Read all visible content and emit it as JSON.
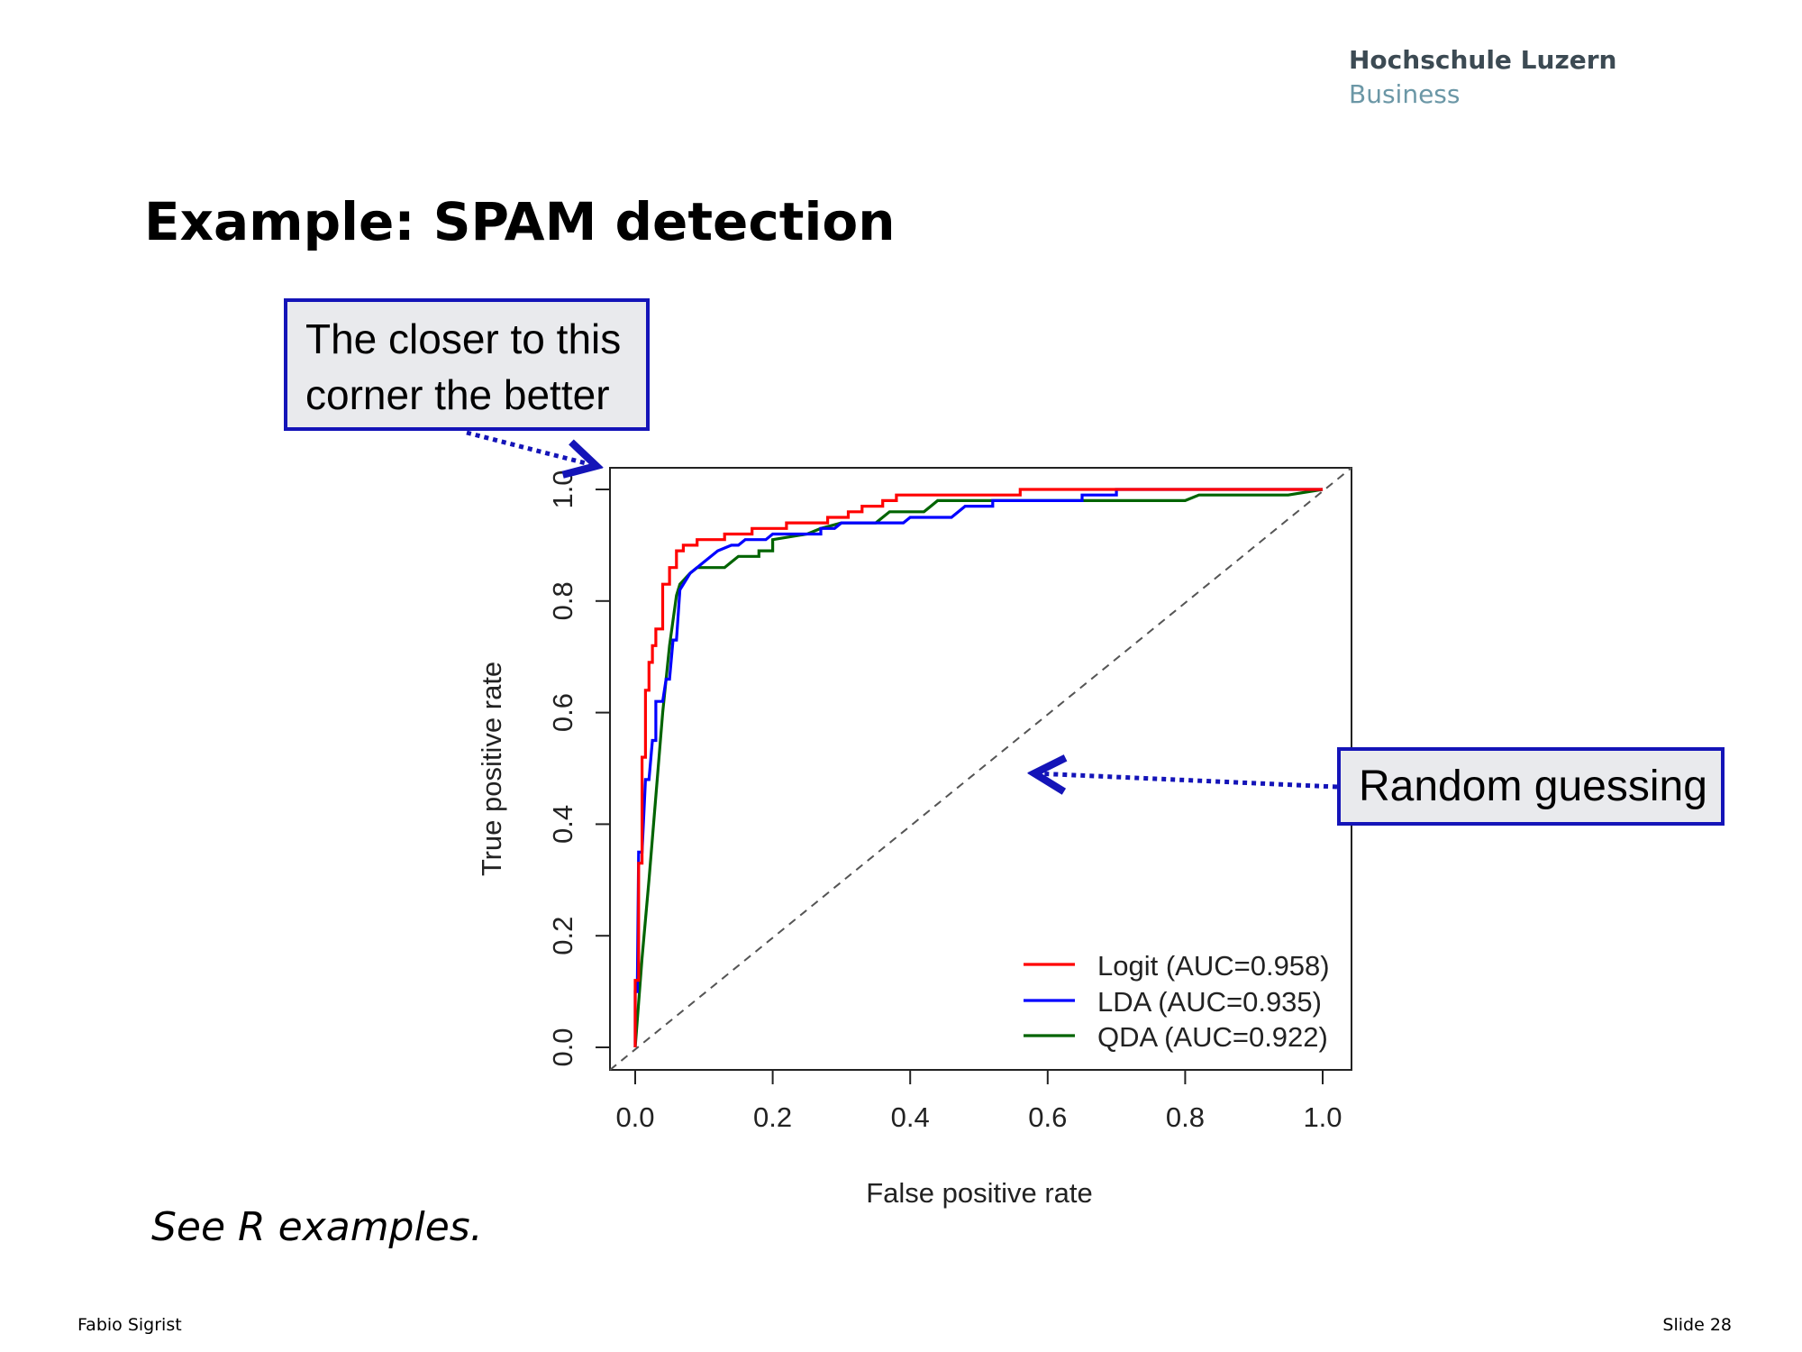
{
  "header": {
    "brand_line1": "Hochschule Luzern",
    "brand_line2": "Business"
  },
  "slide": {
    "title": "Example: SPAM detection",
    "callout_corner_line1": "The closer to this",
    "callout_corner_line2": "corner the better",
    "callout_random": "Random guessing",
    "footnote": "See R examples."
  },
  "footer": {
    "author": "Fabio Sigrist",
    "slide_number": "Slide 28"
  },
  "colors": {
    "callout_border": "#1414b8",
    "callout_fill": "#e9eaed",
    "logit": "#ff0000",
    "lda": "#0000ff",
    "qda": "#006400",
    "diagonal": "#555555"
  },
  "chart_data": {
    "type": "line",
    "xlabel": "False positive rate",
    "ylabel": "True positive rate",
    "xlim": [
      0,
      1
    ],
    "ylim": [
      0,
      1
    ],
    "xticks": [
      "0.0",
      "0.2",
      "0.4",
      "0.6",
      "0.8",
      "1.0"
    ],
    "yticks": [
      "0.0",
      "0.2",
      "0.4",
      "0.6",
      "0.8",
      "1.0"
    ],
    "legend_position": "bottom-right",
    "grid": false,
    "series": [
      {
        "name": "Logit (AUC=0.958)",
        "color": "#ff0000",
        "points": [
          [
            0,
            0
          ],
          [
            0,
            0.12
          ],
          [
            0.005,
            0.12
          ],
          [
            0.005,
            0.33
          ],
          [
            0.01,
            0.33
          ],
          [
            0.01,
            0.52
          ],
          [
            0.015,
            0.52
          ],
          [
            0.015,
            0.64
          ],
          [
            0.02,
            0.64
          ],
          [
            0.02,
            0.69
          ],
          [
            0.025,
            0.69
          ],
          [
            0.025,
            0.72
          ],
          [
            0.03,
            0.72
          ],
          [
            0.03,
            0.75
          ],
          [
            0.04,
            0.75
          ],
          [
            0.04,
            0.83
          ],
          [
            0.05,
            0.83
          ],
          [
            0.05,
            0.86
          ],
          [
            0.06,
            0.86
          ],
          [
            0.06,
            0.89
          ],
          [
            0.07,
            0.89
          ],
          [
            0.07,
            0.9
          ],
          [
            0.09,
            0.9
          ],
          [
            0.09,
            0.91
          ],
          [
            0.13,
            0.91
          ],
          [
            0.13,
            0.92
          ],
          [
            0.17,
            0.92
          ],
          [
            0.17,
            0.93
          ],
          [
            0.22,
            0.93
          ],
          [
            0.22,
            0.94
          ],
          [
            0.28,
            0.94
          ],
          [
            0.28,
            0.95
          ],
          [
            0.31,
            0.95
          ],
          [
            0.31,
            0.96
          ],
          [
            0.33,
            0.96
          ],
          [
            0.33,
            0.97
          ],
          [
            0.36,
            0.97
          ],
          [
            0.36,
            0.98
          ],
          [
            0.38,
            0.98
          ],
          [
            0.38,
            0.99
          ],
          [
            0.56,
            0.99
          ],
          [
            0.56,
            1.0
          ],
          [
            1.0,
            1.0
          ]
        ]
      },
      {
        "name": "LDA (AUC=0.935)",
        "color": "#0000ff",
        "points": [
          [
            0,
            0
          ],
          [
            0,
            0.1
          ],
          [
            0.003,
            0.1
          ],
          [
            0.005,
            0.35
          ],
          [
            0.01,
            0.35
          ],
          [
            0.015,
            0.48
          ],
          [
            0.02,
            0.48
          ],
          [
            0.025,
            0.55
          ],
          [
            0.03,
            0.55
          ],
          [
            0.03,
            0.62
          ],
          [
            0.04,
            0.62
          ],
          [
            0.045,
            0.66
          ],
          [
            0.05,
            0.66
          ],
          [
            0.055,
            0.73
          ],
          [
            0.06,
            0.73
          ],
          [
            0.065,
            0.82
          ],
          [
            0.08,
            0.85
          ],
          [
            0.1,
            0.87
          ],
          [
            0.12,
            0.89
          ],
          [
            0.14,
            0.9
          ],
          [
            0.15,
            0.9
          ],
          [
            0.16,
            0.91
          ],
          [
            0.19,
            0.91
          ],
          [
            0.2,
            0.92
          ],
          [
            0.27,
            0.92
          ],
          [
            0.27,
            0.93
          ],
          [
            0.29,
            0.93
          ],
          [
            0.3,
            0.94
          ],
          [
            0.39,
            0.94
          ],
          [
            0.4,
            0.95
          ],
          [
            0.46,
            0.95
          ],
          [
            0.48,
            0.97
          ],
          [
            0.52,
            0.97
          ],
          [
            0.52,
            0.98
          ],
          [
            0.65,
            0.98
          ],
          [
            0.65,
            0.99
          ],
          [
            0.7,
            0.99
          ],
          [
            0.7,
            1.0
          ],
          [
            1.0,
            1.0
          ]
        ]
      },
      {
        "name": "QDA (AUC=0.922)",
        "color": "#006400",
        "points": [
          [
            0,
            0
          ],
          [
            0.005,
            0.08
          ],
          [
            0.01,
            0.16
          ],
          [
            0.02,
            0.3
          ],
          [
            0.03,
            0.45
          ],
          [
            0.04,
            0.6
          ],
          [
            0.05,
            0.72
          ],
          [
            0.06,
            0.81
          ],
          [
            0.065,
            0.83
          ],
          [
            0.08,
            0.85
          ],
          [
            0.09,
            0.86
          ],
          [
            0.13,
            0.86
          ],
          [
            0.14,
            0.87
          ],
          [
            0.15,
            0.88
          ],
          [
            0.18,
            0.88
          ],
          [
            0.18,
            0.89
          ],
          [
            0.2,
            0.89
          ],
          [
            0.2,
            0.91
          ],
          [
            0.25,
            0.92
          ],
          [
            0.27,
            0.93
          ],
          [
            0.3,
            0.94
          ],
          [
            0.35,
            0.94
          ],
          [
            0.37,
            0.96
          ],
          [
            0.42,
            0.96
          ],
          [
            0.43,
            0.97
          ],
          [
            0.44,
            0.98
          ],
          [
            0.54,
            0.98
          ],
          [
            0.56,
            0.98
          ],
          [
            0.8,
            0.98
          ],
          [
            0.82,
            0.99
          ],
          [
            0.95,
            0.99
          ],
          [
            1.0,
            1.0
          ]
        ]
      }
    ],
    "reference_line": {
      "points": [
        [
          0,
          0
        ],
        [
          1,
          1
        ]
      ],
      "style": "dashed"
    }
  }
}
